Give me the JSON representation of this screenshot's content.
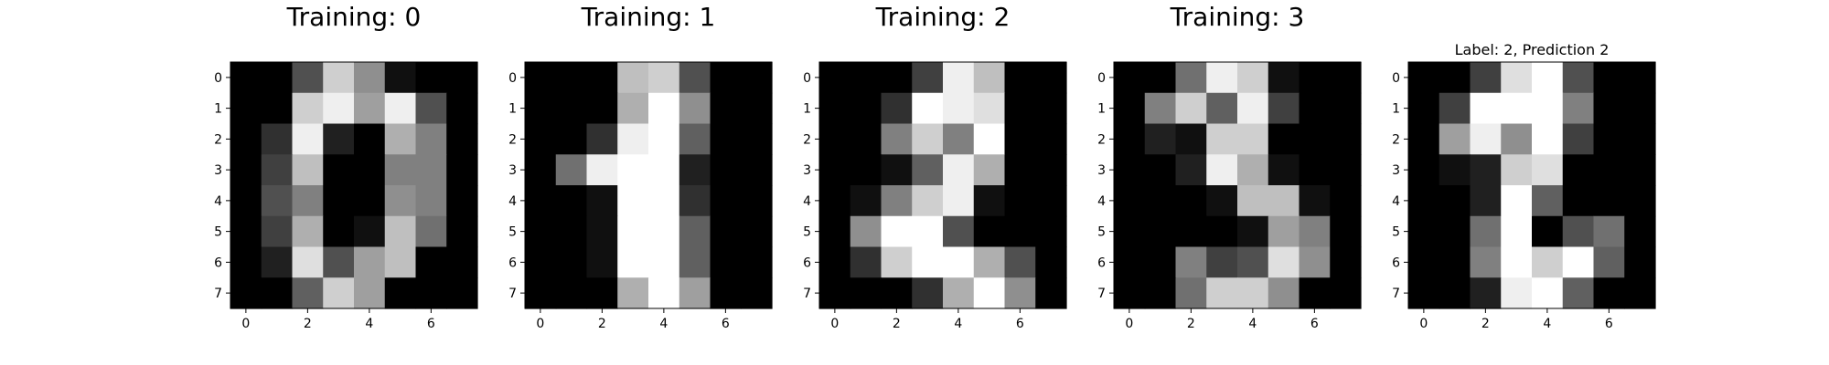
{
  "chart_data": [
    {
      "type": "heatmap",
      "title": "Training: 0",
      "colormap": "gray",
      "x_ticks": [
        0,
        2,
        4,
        6
      ],
      "y_ticks": [
        0,
        1,
        2,
        3,
        4,
        5,
        6,
        7
      ],
      "xlim": [
        -0.5,
        7.5
      ],
      "ylim": [
        7.5,
        -0.5
      ],
      "value_range": [
        0,
        16
      ],
      "grid": false,
      "values": [
        [
          0,
          0,
          5,
          13,
          9,
          1,
          0,
          0
        ],
        [
          0,
          0,
          13,
          15,
          10,
          15,
          5,
          0
        ],
        [
          0,
          3,
          15,
          2,
          0,
          11,
          8,
          0
        ],
        [
          0,
          4,
          12,
          0,
          0,
          8,
          8,
          0
        ],
        [
          0,
          5,
          8,
          0,
          0,
          9,
          8,
          0
        ],
        [
          0,
          4,
          11,
          0,
          1,
          12,
          7,
          0
        ],
        [
          0,
          2,
          14,
          5,
          10,
          12,
          0,
          0
        ],
        [
          0,
          0,
          6,
          13,
          10,
          0,
          0,
          0
        ]
      ]
    },
    {
      "type": "heatmap",
      "title": "Training: 1",
      "colormap": "gray",
      "x_ticks": [
        0,
        2,
        4,
        6
      ],
      "y_ticks": [
        0,
        1,
        2,
        3,
        4,
        5,
        6,
        7
      ],
      "xlim": [
        -0.5,
        7.5
      ],
      "ylim": [
        7.5,
        -0.5
      ],
      "value_range": [
        0,
        16
      ],
      "grid": false,
      "values": [
        [
          0,
          0,
          0,
          12,
          13,
          5,
          0,
          0
        ],
        [
          0,
          0,
          0,
          11,
          16,
          9,
          0,
          0
        ],
        [
          0,
          0,
          3,
          15,
          16,
          6,
          0,
          0
        ],
        [
          0,
          7,
          15,
          16,
          16,
          2,
          0,
          0
        ],
        [
          0,
          0,
          1,
          16,
          16,
          3,
          0,
          0
        ],
        [
          0,
          0,
          1,
          16,
          16,
          6,
          0,
          0
        ],
        [
          0,
          0,
          1,
          16,
          16,
          6,
          0,
          0
        ],
        [
          0,
          0,
          0,
          11,
          16,
          10,
          0,
          0
        ]
      ]
    },
    {
      "type": "heatmap",
      "title": "Training: 2",
      "colormap": "gray",
      "x_ticks": [
        0,
        2,
        4,
        6
      ],
      "y_ticks": [
        0,
        1,
        2,
        3,
        4,
        5,
        6,
        7
      ],
      "xlim": [
        -0.5,
        7.5
      ],
      "ylim": [
        7.5,
        -0.5
      ],
      "value_range": [
        0,
        16
      ],
      "grid": false,
      "values": [
        [
          0,
          0,
          0,
          4,
          15,
          12,
          0,
          0
        ],
        [
          0,
          0,
          3,
          16,
          15,
          14,
          0,
          0
        ],
        [
          0,
          0,
          8,
          13,
          8,
          16,
          0,
          0
        ],
        [
          0,
          0,
          1,
          6,
          15,
          11,
          0,
          0
        ],
        [
          0,
          1,
          8,
          13,
          15,
          1,
          0,
          0
        ],
        [
          0,
          9,
          16,
          16,
          5,
          0,
          0,
          0
        ],
        [
          0,
          3,
          13,
          16,
          16,
          11,
          5,
          0
        ],
        [
          0,
          0,
          0,
          3,
          11,
          16,
          9,
          0
        ]
      ]
    },
    {
      "type": "heatmap",
      "title": "Training: 3",
      "colormap": "gray",
      "x_ticks": [
        0,
        2,
        4,
        6
      ],
      "y_ticks": [
        0,
        1,
        2,
        3,
        4,
        5,
        6,
        7
      ],
      "xlim": [
        -0.5,
        7.5
      ],
      "ylim": [
        7.5,
        -0.5
      ],
      "value_range": [
        0,
        16
      ],
      "grid": false,
      "values": [
        [
          0,
          0,
          7,
          15,
          13,
          1,
          0,
          0
        ],
        [
          0,
          8,
          13,
          6,
          15,
          4,
          0,
          0
        ],
        [
          0,
          2,
          1,
          13,
          13,
          0,
          0,
          0
        ],
        [
          0,
          0,
          2,
          15,
          11,
          1,
          0,
          0
        ],
        [
          0,
          0,
          0,
          1,
          12,
          12,
          1,
          0
        ],
        [
          0,
          0,
          0,
          0,
          1,
          10,
          8,
          0
        ],
        [
          0,
          0,
          8,
          4,
          5,
          14,
          9,
          0
        ],
        [
          0,
          0,
          7,
          13,
          13,
          9,
          0,
          0
        ]
      ]
    },
    {
      "type": "heatmap",
      "title": "Label: 2, Prediction 2",
      "colormap": "gray",
      "x_ticks": [
        0,
        2,
        4,
        6
      ],
      "y_ticks": [
        0,
        1,
        2,
        3,
        4,
        5,
        6,
        7
      ],
      "xlim": [
        -0.5,
        7.5
      ],
      "ylim": [
        7.5,
        -0.5
      ],
      "value_range": [
        0,
        16
      ],
      "grid": false,
      "values": [
        [
          0,
          0,
          4,
          14,
          16,
          5,
          0,
          0
        ],
        [
          0,
          4,
          16,
          16,
          16,
          8,
          0,
          0
        ],
        [
          0,
          10,
          15,
          9,
          16,
          4,
          0,
          0
        ],
        [
          0,
          1,
          2,
          13,
          14,
          0,
          0,
          0
        ],
        [
          0,
          0,
          2,
          16,
          6,
          0,
          0,
          0
        ],
        [
          0,
          0,
          7,
          16,
          0,
          5,
          7,
          0
        ],
        [
          0,
          0,
          8,
          16,
          13,
          16,
          6,
          0
        ],
        [
          0,
          0,
          2,
          15,
          16,
          6,
          0,
          0
        ]
      ]
    }
  ]
}
